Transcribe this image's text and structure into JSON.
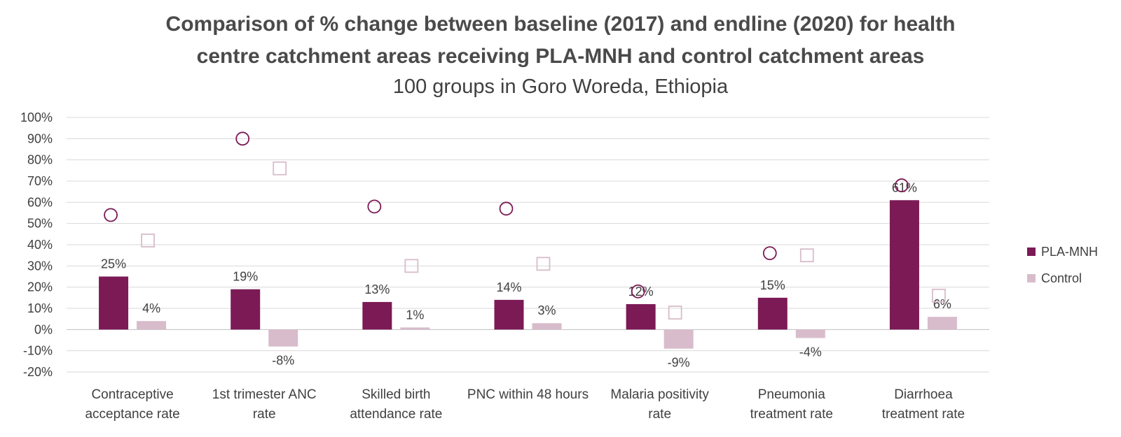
{
  "title": {
    "line1": "Comparison of % change between baseline (2017) and endline (2020) for health",
    "line2": "centre catchment areas receiving PLA-MNH and control catchment areas",
    "subtitle": "100 groups in Goro Woreda, Ethiopia"
  },
  "colors": {
    "pla": "#7b1a55",
    "control": "#d8bccb",
    "grid": "#d9d9d9",
    "axis": "#bfbfbf"
  },
  "chart_data": {
    "type": "bar",
    "ylim": [
      -20,
      100
    ],
    "yticks": [
      "-20%",
      "-10%",
      "0%",
      "10%",
      "20%",
      "30%",
      "40%",
      "50%",
      "60%",
      "70%",
      "80%",
      "90%",
      "100%"
    ],
    "categories": [
      [
        "Contraceptive",
        "acceptance rate"
      ],
      [
        "1st trimester ANC",
        "rate"
      ],
      [
        "Skilled birth",
        "attendance rate"
      ],
      [
        "PNC within 48 hours"
      ],
      [
        "Malaria positivity",
        "rate"
      ],
      [
        "Pneumonia",
        "treatment rate"
      ],
      [
        "Diarrhoea",
        "treatment rate"
      ]
    ],
    "series": [
      {
        "name": "PLA-MNH",
        "values": [
          25,
          19,
          13,
          14,
          12,
          15,
          61
        ],
        "labels": [
          "25%",
          "19%",
          "13%",
          "14%",
          "12%",
          "15%",
          "61%"
        ],
        "markers": [
          54,
          90,
          58,
          57,
          18,
          36,
          68
        ],
        "marker_shape": "circle"
      },
      {
        "name": "Control",
        "values": [
          4,
          -8,
          1,
          3,
          -9,
          -4,
          6
        ],
        "labels": [
          "4%",
          "-8%",
          "1%",
          "3%",
          "-9%",
          "-4%",
          "6%"
        ],
        "markers": [
          42,
          76,
          30,
          31,
          8,
          35,
          16
        ],
        "marker_shape": "square"
      }
    ],
    "legend": [
      "PLA-MNH",
      "Control"
    ],
    "grid": true
  }
}
